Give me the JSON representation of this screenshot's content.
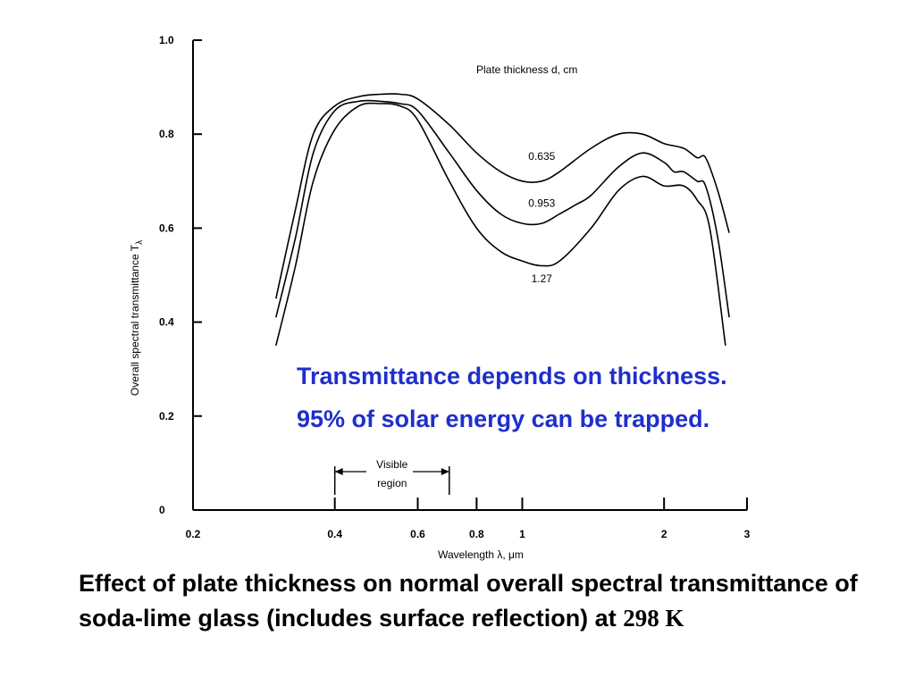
{
  "chart_data": {
    "type": "line",
    "title": "",
    "xlabel": "Wavelength λ, μm",
    "ylabel": "Overall spectral transmittance T",
    "ylabel_subscript": "λ",
    "xscale": "log",
    "xlim": [
      0.2,
      3
    ],
    "ylim": [
      0,
      1.0
    ],
    "x_ticks": [
      0.2,
      0.4,
      0.6,
      0.8,
      1,
      2,
      3
    ],
    "x_tick_labels": [
      "0.2",
      "0.4",
      "0.6",
      "0.8",
      "1",
      "2",
      "3"
    ],
    "y_ticks": [
      0,
      0.2,
      0.4,
      0.6,
      0.8,
      1.0
    ],
    "y_tick_labels": [
      "0",
      "0.2",
      "0.4",
      "0.6",
      "0.8",
      "1.0"
    ],
    "legend_title": "Plate thickness d, cm",
    "series": [
      {
        "name": "0.635",
        "x": [
          0.3,
          0.33,
          0.36,
          0.4,
          0.45,
          0.5,
          0.55,
          0.6,
          0.7,
          0.8,
          0.9,
          1.0,
          1.1,
          1.2,
          1.4,
          1.6,
          1.8,
          2.0,
          2.2,
          2.35,
          2.45,
          2.6,
          2.75
        ],
        "values": [
          0.45,
          0.64,
          0.8,
          0.86,
          0.88,
          0.885,
          0.885,
          0.875,
          0.82,
          0.76,
          0.72,
          0.7,
          0.7,
          0.72,
          0.77,
          0.8,
          0.8,
          0.78,
          0.77,
          0.75,
          0.75,
          0.68,
          0.59
        ]
      },
      {
        "name": "0.953",
        "x": [
          0.3,
          0.33,
          0.36,
          0.4,
          0.45,
          0.5,
          0.55,
          0.6,
          0.7,
          0.8,
          0.9,
          1.0,
          1.1,
          1.2,
          1.3,
          1.4,
          1.6,
          1.8,
          2.0,
          2.1,
          2.2,
          2.35,
          2.45,
          2.6,
          2.75
        ],
        "values": [
          0.41,
          0.58,
          0.76,
          0.85,
          0.87,
          0.87,
          0.865,
          0.85,
          0.76,
          0.68,
          0.63,
          0.61,
          0.61,
          0.63,
          0.65,
          0.67,
          0.73,
          0.76,
          0.74,
          0.72,
          0.72,
          0.7,
          0.69,
          0.58,
          0.41
        ]
      },
      {
        "name": "1.27",
        "x": [
          0.3,
          0.33,
          0.36,
          0.4,
          0.45,
          0.5,
          0.55,
          0.6,
          0.7,
          0.8,
          0.9,
          1.0,
          1.1,
          1.2,
          1.4,
          1.6,
          1.8,
          2.0,
          2.2,
          2.35,
          2.5,
          2.7
        ],
        "values": [
          0.35,
          0.52,
          0.7,
          0.81,
          0.86,
          0.865,
          0.86,
          0.83,
          0.7,
          0.6,
          0.55,
          0.53,
          0.52,
          0.53,
          0.6,
          0.68,
          0.71,
          0.69,
          0.69,
          0.66,
          0.6,
          0.35
        ]
      }
    ],
    "annotations": {
      "bracket_label_line1": "Visible",
      "bracket_label_line2": "region",
      "bracket_from": 0.4,
      "bracket_to": 0.7
    }
  },
  "overlay": {
    "line1": "Transmittance depends on thickness.",
    "line2": "95% of solar energy can be trapped."
  },
  "caption": {
    "text": "Effect of plate thickness on normal overall spectral transmittance of soda-lime glass (includes surface reflection) at",
    "temperature": "298 K"
  },
  "colors": {
    "overlay_text": "#1f2fcc",
    "ink": "#000000"
  }
}
